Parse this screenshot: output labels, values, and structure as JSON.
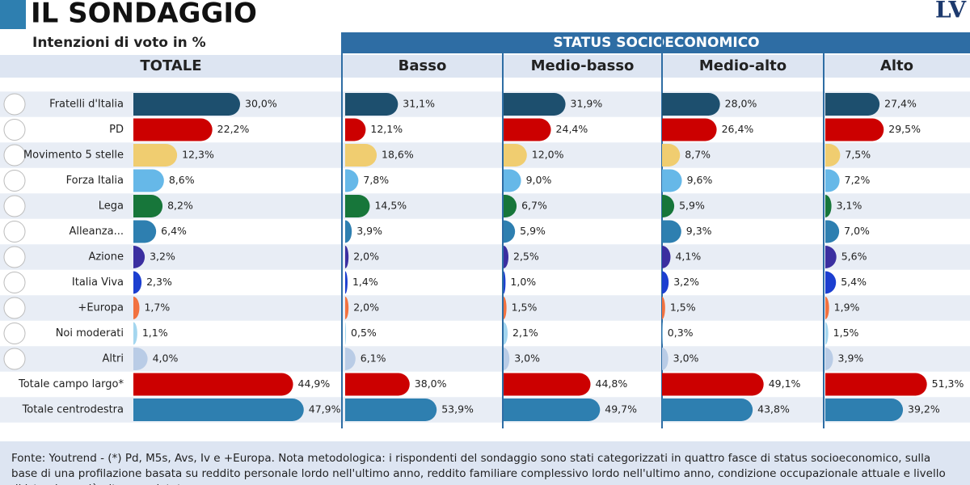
{
  "chart_data": {
    "type": "bar",
    "title": "IL SONDAGGIO",
    "subtitle": "Intenzioni di voto in %",
    "logo": "LV",
    "group_label": "STATUS SOCIOECONOMICO",
    "categories": [
      "Fratelli d'Italia",
      "PD",
      "Movimento 5 stelle",
      "Forza Italia",
      "Lega",
      "Alleanza...",
      "Azione",
      "Italia Viva",
      "+Europa",
      "Noi moderati",
      "Altri",
      "Totale campo largo*",
      "Totale centrodestra"
    ],
    "colors": [
      "#1d4f6e",
      "#cc0000",
      "#f0cd70",
      "#66b8e8",
      "#17763a",
      "#2e7fb0",
      "#3b2fa0",
      "#1c3fd0",
      "#f27240",
      "#a4d6ef",
      "#b9cce6",
      "#cc0000",
      "#2e7fb0"
    ],
    "series": [
      {
        "name": "TOTALE",
        "values": [
          30.0,
          22.2,
          12.3,
          8.6,
          8.2,
          6.4,
          3.2,
          2.3,
          1.7,
          1.1,
          4.0,
          44.9,
          47.9
        ],
        "value_labels": [
          "30,0%",
          "22,2%",
          "12,3%",
          "8,6%",
          "8,2%",
          "6,4%",
          "3,2%",
          "2,3%",
          "1,7%",
          "1,1%",
          "4,0%",
          "44,9%",
          "47,9%"
        ]
      },
      {
        "name": "Basso",
        "values": [
          31.1,
          12.1,
          18.6,
          7.8,
          14.5,
          3.9,
          2.0,
          1.4,
          2.0,
          0.5,
          6.1,
          38.0,
          53.9
        ],
        "value_labels": [
          "31,1%",
          "12,1%",
          "18,6%",
          "7,8%",
          "14,5%",
          "3,9%",
          "2,0%",
          "1,4%",
          "2,0%",
          "0,5%",
          "6,1%",
          "38,0%",
          "53,9%"
        ]
      },
      {
        "name": "Medio-basso",
        "values": [
          31.9,
          24.4,
          12.0,
          9.0,
          6.7,
          5.9,
          2.5,
          1.0,
          1.5,
          2.1,
          3.0,
          44.8,
          49.7
        ],
        "value_labels": [
          "31,9%",
          "24,4%",
          "12,0%",
          "9,0%",
          "6,7%",
          "5,9%",
          "2,5%",
          "1,0%",
          "1,5%",
          "2,1%",
          "3,0%",
          "44,8%",
          "49,7%"
        ]
      },
      {
        "name": "Medio-alto",
        "values": [
          28.0,
          26.4,
          8.7,
          9.6,
          5.9,
          9.3,
          4.1,
          3.2,
          1.5,
          0.3,
          3.0,
          49.1,
          43.8
        ],
        "value_labels": [
          "28,0%",
          "26,4%",
          "8,7%",
          "9,6%",
          "5,9%",
          "9,3%",
          "4,1%",
          "3,2%",
          "1,5%",
          "0,3%",
          "3,0%",
          "49,1%",
          "43,8%"
        ]
      },
      {
        "name": "Alto",
        "values": [
          27.4,
          29.5,
          7.5,
          7.2,
          3.1,
          7.0,
          5.6,
          5.4,
          1.9,
          1.5,
          3.9,
          51.3,
          39.2
        ],
        "value_labels": [
          "27,4%",
          "29,5%",
          "7,5%",
          "7,2%",
          "3,1%",
          "7,0%",
          "5,6%",
          "5,4%",
          "1,9%",
          "1,5%",
          "3,9%",
          "51,3%",
          "39,2%"
        ]
      }
    ],
    "note": "Fonte: Youtrend - (*) Pd, M5s, Avs, Iv e +Europa. Nota metodologica: i rispondenti del sondaggio sono stati categorizzati in quattro fasce di status socioeconomico, sulla base di una profilazione basata su reddito personale lordo nell'ultimo anno, reddito familiare complessivo lordo nell'ultimo anno, condizione occupazionale attuale e livello di istruzione più alto completato"
  }
}
